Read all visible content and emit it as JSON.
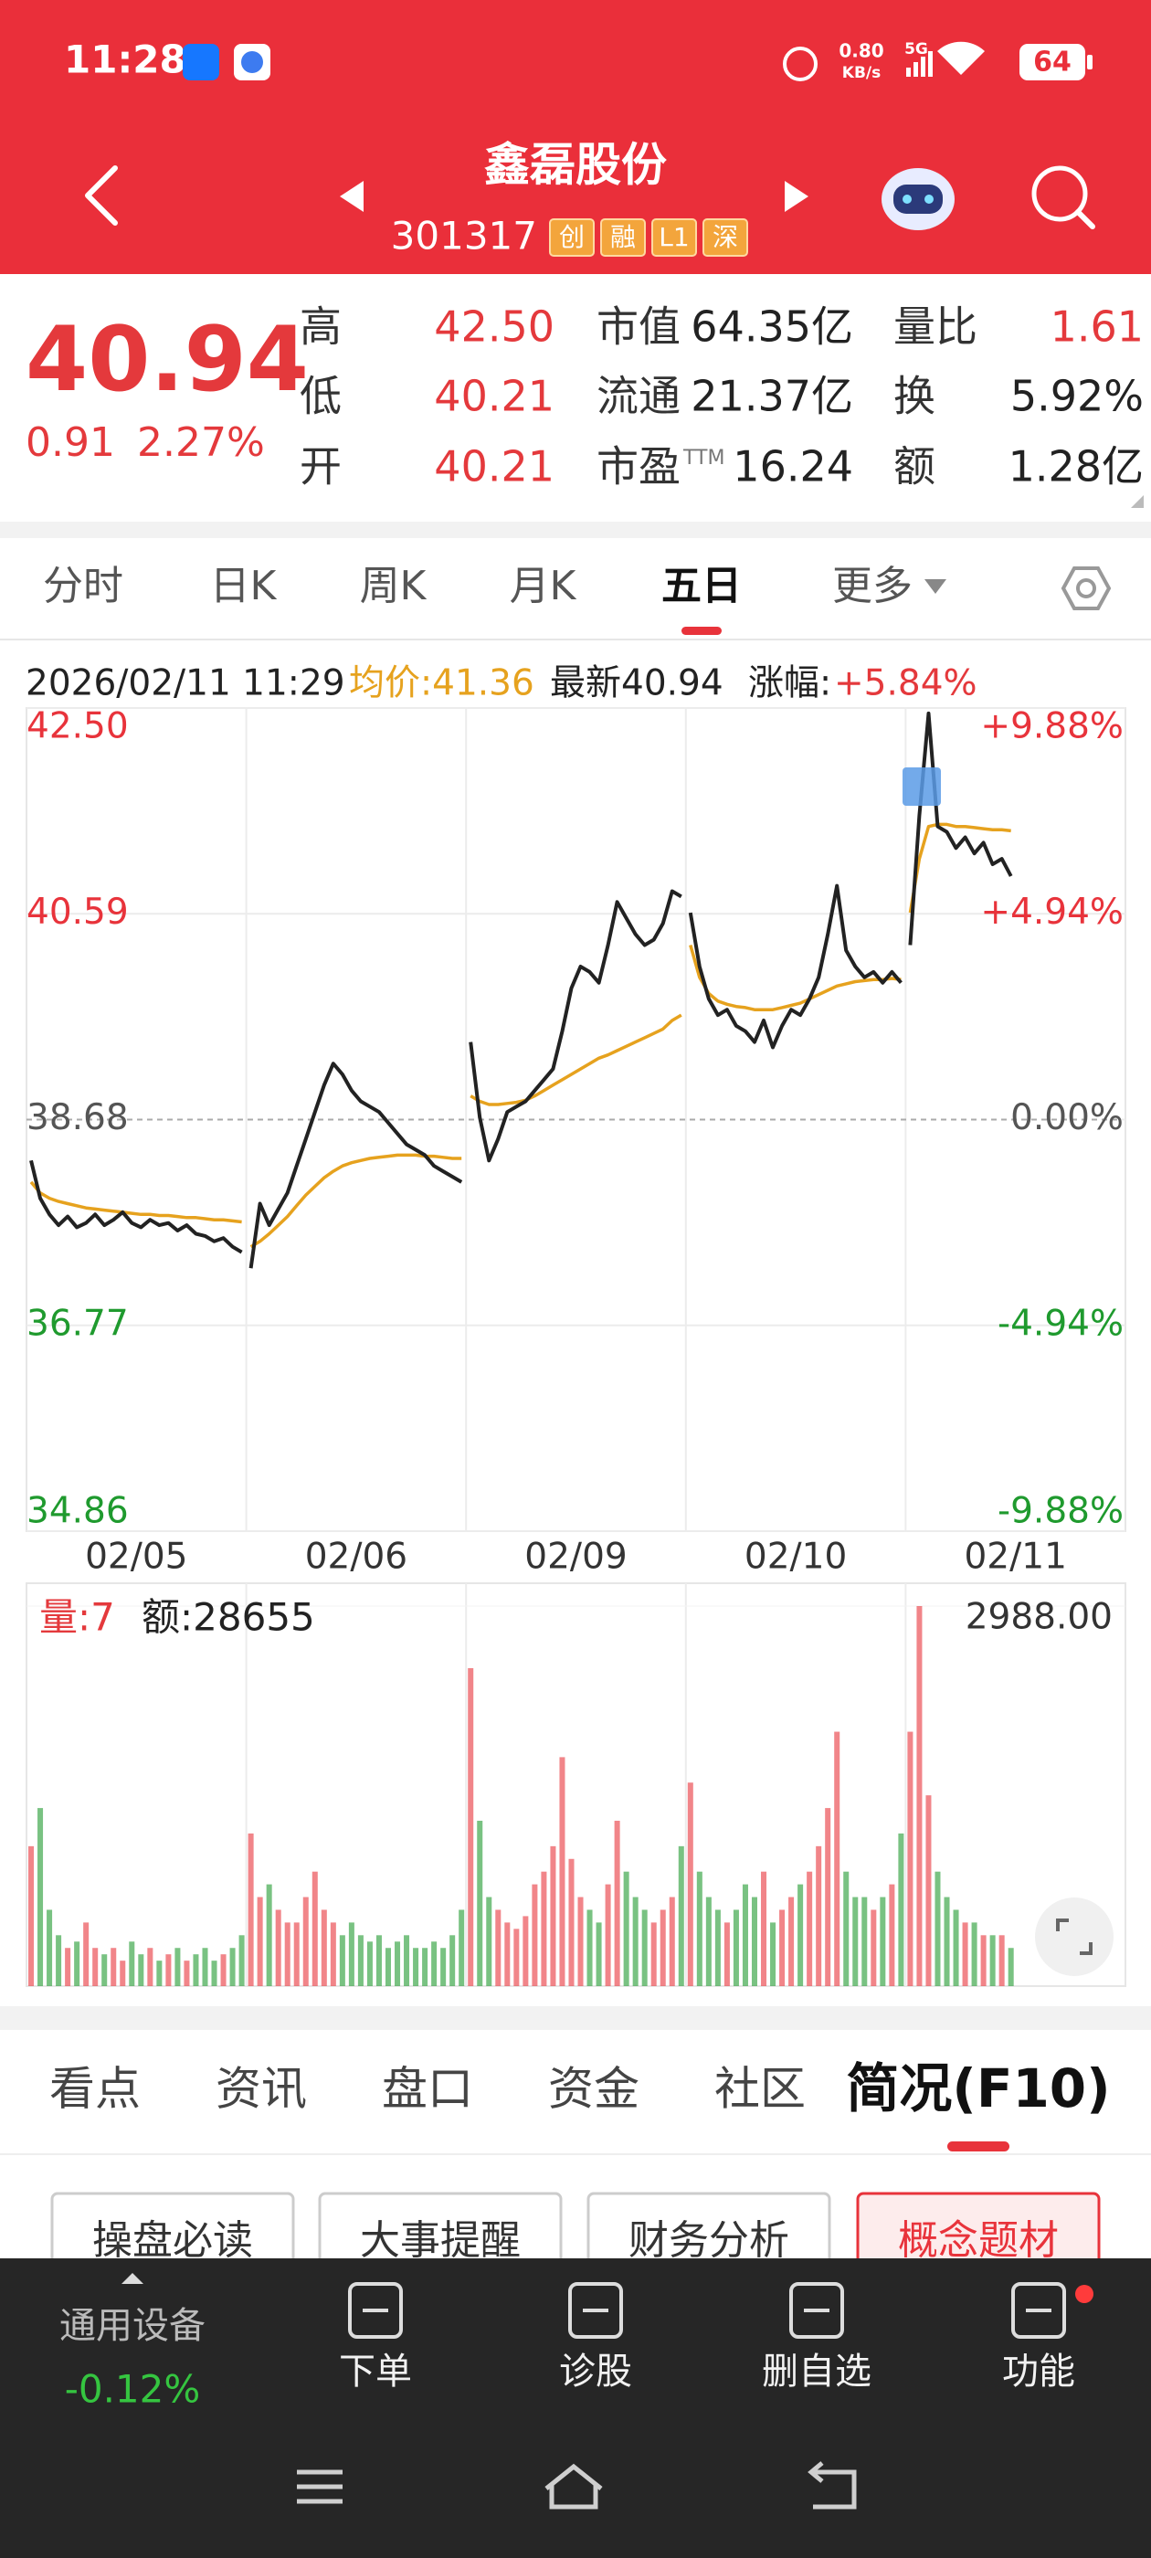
{
  "status_bar": {
    "time": "11:28",
    "speed": "0.80",
    "speed_unit": "KB/s",
    "network": "5G",
    "battery": "64"
  },
  "header": {
    "name": "鑫磊股份",
    "code": "301317",
    "tags": [
      "创",
      "融",
      "L1",
      "深"
    ]
  },
  "quote": {
    "price": "40.94",
    "change": "0.91",
    "change_pct": "2.27%",
    "stats": [
      [
        {
          "label": "高",
          "value": "42.50"
        },
        {
          "label": "市值",
          "value": "64.35亿"
        },
        {
          "label": "量比",
          "value": "1.61"
        }
      ],
      [
        {
          "label": "低",
          "value": "40.21"
        },
        {
          "label": "流通",
          "value": "21.37亿"
        },
        {
          "label": "换",
          "value": "5.92%"
        }
      ],
      [
        {
          "label": "开",
          "value": "40.21"
        },
        {
          "label": "市盈",
          "sup": "TTM",
          "value": "16.24"
        },
        {
          "label": "额",
          "value": "1.28亿"
        }
      ]
    ]
  },
  "tabs": {
    "items": [
      "分时",
      "日K",
      "周K",
      "月K",
      "五日",
      "更多"
    ],
    "active": 4
  },
  "chart_info": {
    "time": "2026/02/11 11:29",
    "avg": "均价:41.36",
    "latest": "最新40.94",
    "change_label": "涨幅:",
    "change_value": "+5.84%"
  },
  "chart_data": {
    "type": "line",
    "ylim": [
      34.86,
      42.5
    ],
    "yticks": [
      {
        "value": 42.5,
        "label": "42.50"
      },
      40.59,
      38.68,
      36.77,
      34.86
    ],
    "y2lim": [
      -9.88,
      9.88
    ],
    "y2ticks": [
      {
        "value": 9.88,
        "label": "+9.88%"
      },
      {
        "value": 4.94,
        "label": "+4.94%"
      },
      {
        "value": 0,
        "label": "0.00%"
      },
      {
        "value": -4.94,
        "label": "-4.94%"
      },
      {
        "value": -9.88,
        "label": "-9.88%"
      }
    ],
    "grid": true,
    "up_color": "#e8333b",
    "down_color": "#1f9a2e",
    "days": [
      "02/05",
      "02/06",
      "02/09",
      "02/10",
      "02/11"
    ],
    "price": {
      "color": "#222222",
      "values": [
        [
          38.3,
          37.95,
          37.8,
          37.7,
          37.78,
          37.68,
          37.72,
          37.8,
          37.7,
          37.75,
          37.82,
          37.72,
          37.68,
          37.75,
          37.7,
          37.72,
          37.65,
          37.7,
          37.62,
          37.6,
          37.55,
          37.58,
          37.5,
          37.45
        ],
        [
          37.3,
          37.9,
          37.7,
          37.85,
          38.0,
          38.25,
          38.5,
          38.75,
          39.0,
          39.2,
          39.1,
          38.95,
          38.85,
          38.8,
          38.75,
          38.65,
          38.55,
          38.45,
          38.4,
          38.35,
          38.25,
          38.2,
          38.15,
          38.1
        ],
        [
          39.4,
          38.7,
          38.3,
          38.5,
          38.75,
          38.8,
          38.85,
          38.95,
          39.05,
          39.15,
          39.5,
          39.9,
          40.1,
          40.05,
          39.95,
          40.3,
          40.7,
          40.55,
          40.4,
          40.3,
          40.35,
          40.5,
          40.8,
          40.75
        ],
        [
          40.6,
          40.1,
          39.8,
          39.65,
          39.7,
          39.55,
          39.5,
          39.4,
          39.6,
          39.35,
          39.55,
          39.7,
          39.65,
          39.8,
          40.0,
          40.4,
          40.85,
          40.25,
          40.1,
          40.0,
          40.05,
          39.95,
          40.05,
          39.95
        ],
        [
          40.3,
          41.5,
          42.45,
          41.4,
          41.35,
          41.2,
          41.3,
          41.15,
          41.25,
          41.05,
          41.1,
          40.94
        ]
      ]
    },
    "average": {
      "color": "#e6a21e",
      "values": [
        [
          38.1,
          38.0,
          37.95,
          37.92,
          37.9,
          37.88,
          37.86,
          37.85,
          37.84,
          37.83,
          37.82,
          37.81,
          37.8,
          37.8,
          37.79,
          37.79,
          37.78,
          37.77,
          37.77,
          37.76,
          37.75,
          37.75,
          37.74,
          37.73
        ],
        [
          37.5,
          37.55,
          37.62,
          37.7,
          37.78,
          37.88,
          37.98,
          38.06,
          38.14,
          38.2,
          38.25,
          38.28,
          38.3,
          38.32,
          38.33,
          38.34,
          38.35,
          38.35,
          38.35,
          38.34,
          38.34,
          38.33,
          38.32,
          38.32
        ],
        [
          38.9,
          38.85,
          38.82,
          38.82,
          38.83,
          38.84,
          38.86,
          38.9,
          38.95,
          39.0,
          39.05,
          39.1,
          39.15,
          39.2,
          39.25,
          39.28,
          39.32,
          39.36,
          39.4,
          39.44,
          39.48,
          39.52,
          39.6,
          39.65
        ],
        [
          40.3,
          40.0,
          39.85,
          39.78,
          39.75,
          39.73,
          39.72,
          39.7,
          39.7,
          39.7,
          39.72,
          39.74,
          39.76,
          39.8,
          39.84,
          39.88,
          39.92,
          39.94,
          39.96,
          39.97,
          39.98,
          39.98,
          39.99,
          39.98
        ],
        [
          40.6,
          41.1,
          41.4,
          41.42,
          41.42,
          41.4,
          41.4,
          41.39,
          41.38,
          41.37,
          41.37,
          41.36
        ]
      ]
    },
    "volume": {
      "label": "量:7",
      "amount": "额:28655",
      "ylim": [
        0,
        2988
      ],
      "yticks": [
        {
          "value": 2988,
          "label": "2988.00"
        }
      ],
      "values": [
        [
          1100,
          1400,
          600,
          400,
          300,
          350,
          500,
          300,
          250,
          300,
          200,
          350,
          250,
          300,
          200,
          250,
          300,
          200,
          250,
          300,
          200,
          250,
          300,
          400
        ],
        [
          1200,
          700,
          800,
          600,
          500,
          500,
          700,
          900,
          600,
          500,
          400,
          500,
          400,
          350,
          400,
          300,
          350,
          400,
          300,
          300,
          350,
          300,
          400,
          600
        ],
        [
          2500,
          1300,
          700,
          600,
          500,
          450,
          550,
          800,
          900,
          1100,
          1800,
          1000,
          700,
          600,
          500,
          800,
          1300,
          900,
          700,
          600,
          500,
          600,
          700,
          1100
        ],
        [
          1600,
          900,
          700,
          600,
          500,
          600,
          800,
          700,
          900,
          500,
          600,
          700,
          800,
          900,
          1100,
          1400,
          2000,
          900,
          700,
          700,
          600,
          700,
          800,
          1200
        ],
        [
          2000,
          2988,
          1500,
          900,
          700,
          600,
          500,
          500,
          400,
          400,
          400,
          300
        ]
      ]
    }
  },
  "info_tabs": {
    "items": [
      "看点",
      "资讯",
      "盘口",
      "资金",
      "社区",
      "简况(F10)"
    ],
    "active": 5
  },
  "buttons": {
    "items": [
      "操盘必读",
      "大事提醒",
      "财务分析",
      "概念题材"
    ],
    "active": 3
  },
  "bottom_bar": {
    "sector": "通用设备",
    "sector_change": "-0.12%",
    "actions": [
      "下单",
      "诊股",
      "删自选",
      "功能"
    ]
  }
}
